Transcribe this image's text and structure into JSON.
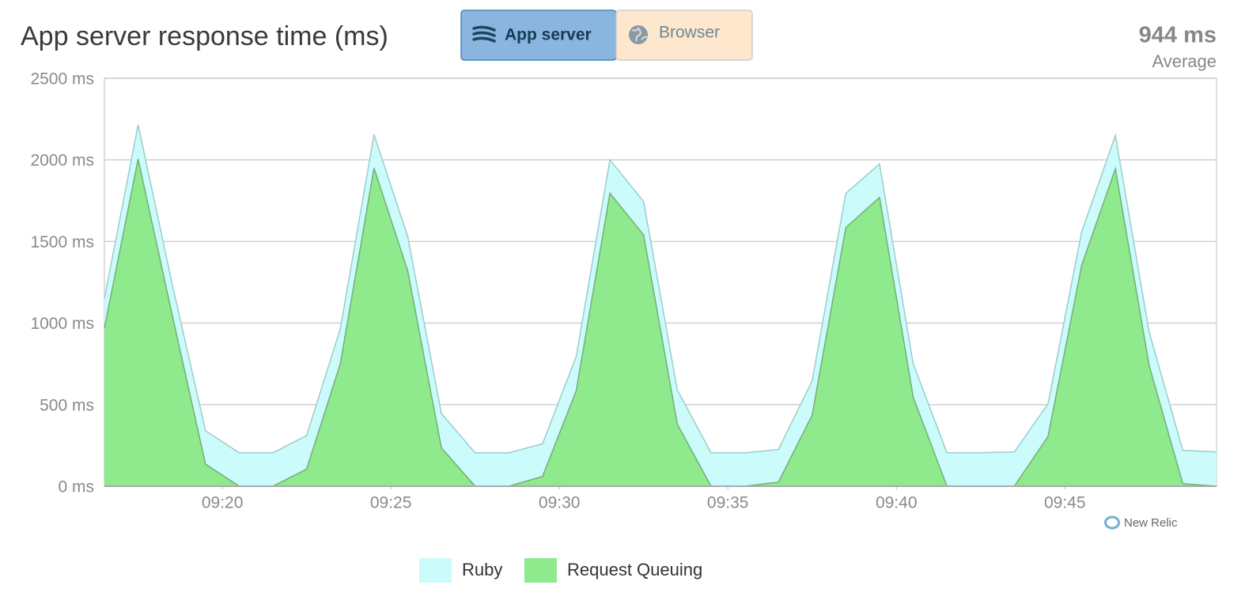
{
  "chart_data": {
    "type": "stacked-area",
    "title": "App server response time (ms)",
    "tabs": [
      "App server",
      "Browser"
    ],
    "summary": {
      "value": "944 ms",
      "label": "Average"
    },
    "brand": "New Relic",
    "x": [
      "09:16:30",
      "09:17:30",
      "09:18:30",
      "09:19:30",
      "09:20:30",
      "09:21:30",
      "09:22:30",
      "09:23:30",
      "09:24:30",
      "09:25:30",
      "09:26:30",
      "09:27:30",
      "09:28:30",
      "09:29:30",
      "09:30:30",
      "09:31:30",
      "09:32:30",
      "09:33:30",
      "09:34:30",
      "09:35:30",
      "09:36:30",
      "09:37:30",
      "09:38:30",
      "09:39:30",
      "09:40:30",
      "09:41:30",
      "09:42:30",
      "09:43:30",
      "09:44:30",
      "09:45:30",
      "09:46:30",
      "09:47:30",
      "09:48:30",
      "09:49:30"
    ],
    "xlim": [
      "09:16:30",
      "09:49:30"
    ],
    "xticks": [
      "09:20",
      "09:25",
      "09:30",
      "09:35",
      "09:40",
      "09:45"
    ],
    "ylim": [
      0,
      2500
    ],
    "yticks": [
      {
        "value": 0,
        "label": "0 ms"
      },
      {
        "value": 500,
        "label": "500 ms"
      },
      {
        "value": 1000,
        "label": "1000 ms"
      },
      {
        "value": 1500,
        "label": "1500 ms"
      },
      {
        "value": 2000,
        "label": "2000 ms"
      },
      {
        "value": 2500,
        "label": "2500 ms"
      }
    ],
    "grid": true,
    "series": [
      {
        "name": "Ruby",
        "color": "#cbfbfb",
        "stroke": "#9ccccc",
        "values": [
          180,
          210,
          190,
          205,
          205,
          205,
          205,
          215,
          205,
          210,
          210,
          205,
          205,
          200,
          210,
          205,
          205,
          210,
          205,
          205,
          200,
          210,
          210,
          205,
          205,
          205,
          205,
          210,
          200,
          205,
          205,
          205,
          205,
          210
        ]
      },
      {
        "name": "Request Queuing",
        "color": "#8eea8c",
        "stroke": "#77ad79",
        "values": [
          970,
          2005,
          1060,
          135,
          0,
          0,
          105,
          750,
          1950,
          1320,
          235,
          0,
          0,
          60,
          585,
          1795,
          1540,
          380,
          0,
          0,
          25,
          435,
          1585,
          1770,
          545,
          0,
          0,
          0,
          305,
          1355,
          1945,
          740,
          15,
          0
        ]
      }
    ]
  }
}
